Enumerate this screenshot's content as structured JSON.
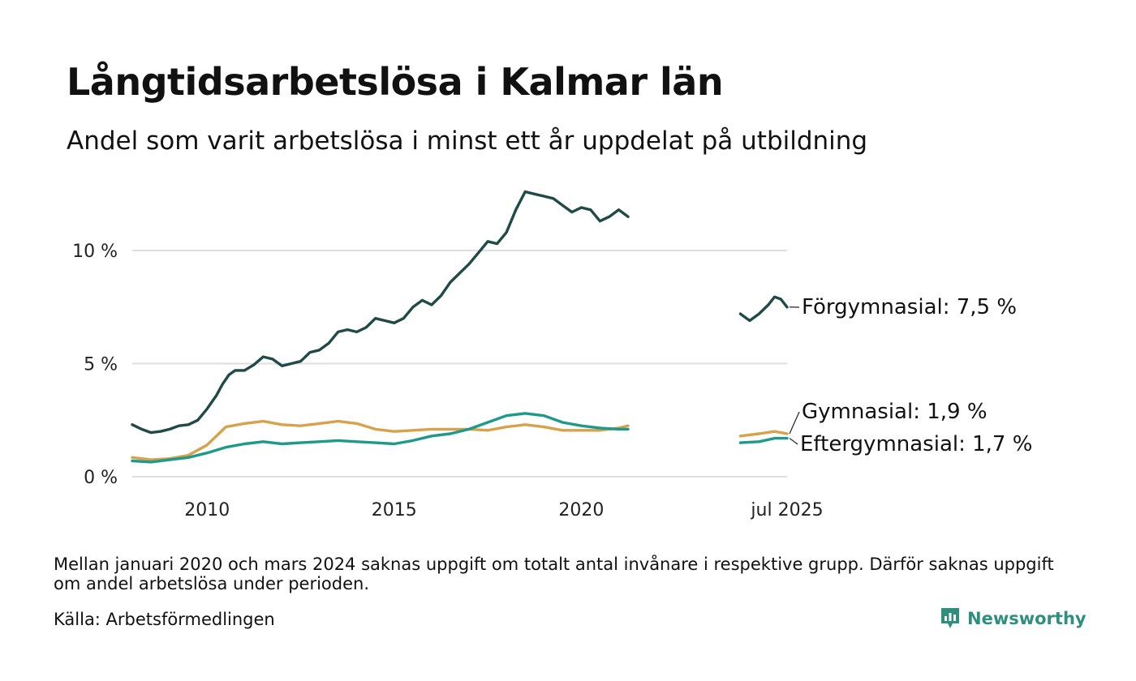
{
  "colors": {
    "forgymnasial": "#1f4a45",
    "gymnasial": "#d7a24b",
    "eftergymnasial": "#1d9a8a",
    "grid": "#dedede",
    "brand": "#2f8f7f"
  },
  "source_text": "Källa: Arbetsförmedlingen",
  "note_text": "Mellan januari 2020 och mars 2024 saknas uppgift om totalt antal invånare i respektive grupp. Därför saknas uppgift om andel arbetslösa under perioden.",
  "brand": {
    "name": "Newsworthy",
    "icon": "newsworthy-logo-icon"
  },
  "chart_data": {
    "type": "line",
    "title": "Långtidsarbetslösa i Kalmar län",
    "subtitle": "Andel som varit arbetslösa i minst ett år uppdelat på utbildning",
    "xlabel": "",
    "ylabel": "",
    "x_range": [
      "2008-01",
      "2025-07"
    ],
    "ylim": [
      0,
      13
    ],
    "y_ticks": [
      {
        "value": 0,
        "label": "0 %"
      },
      {
        "value": 5,
        "label": "5 %"
      },
      {
        "value": 10,
        "label": "10 %"
      }
    ],
    "x_ticks": [
      {
        "value": "2010-01",
        "label": "2010"
      },
      {
        "value": "2015-01",
        "label": "2015"
      },
      {
        "value": "2020-01",
        "label": "2020"
      },
      {
        "value": "2025-07",
        "label": "jul 2025"
      }
    ],
    "grid": true,
    "legend": "end-labels-right",
    "series": [
      {
        "name": "Förgymnasial",
        "end_label": "Förgymnasial: 7,5 %",
        "segments": [
          [
            [
              "2008-01",
              2.3
            ],
            [
              "2008-04",
              2.1
            ],
            [
              "2008-07",
              1.95
            ],
            [
              "2008-10",
              2.0
            ],
            [
              "2009-01",
              2.1
            ],
            [
              "2009-04",
              2.25
            ],
            [
              "2009-07",
              2.3
            ],
            [
              "2009-10",
              2.5
            ],
            [
              "2010-01",
              3.0
            ],
            [
              "2010-04",
              3.6
            ],
            [
              "2010-06",
              4.1
            ],
            [
              "2010-08",
              4.5
            ],
            [
              "2010-10",
              4.7
            ],
            [
              "2011-01",
              4.7
            ],
            [
              "2011-04",
              4.95
            ],
            [
              "2011-07",
              5.3
            ],
            [
              "2011-10",
              5.2
            ],
            [
              "2012-01",
              4.9
            ],
            [
              "2012-04",
              5.0
            ],
            [
              "2012-07",
              5.1
            ],
            [
              "2012-10",
              5.5
            ],
            [
              "2013-01",
              5.6
            ],
            [
              "2013-04",
              5.9
            ],
            [
              "2013-07",
              6.4
            ],
            [
              "2013-10",
              6.5
            ],
            [
              "2014-01",
              6.4
            ],
            [
              "2014-04",
              6.6
            ],
            [
              "2014-07",
              7.0
            ],
            [
              "2014-10",
              6.9
            ],
            [
              "2015-01",
              6.8
            ],
            [
              "2015-04",
              7.0
            ],
            [
              "2015-07",
              7.5
            ],
            [
              "2015-10",
              7.8
            ],
            [
              "2016-01",
              7.6
            ],
            [
              "2016-04",
              8.0
            ],
            [
              "2016-07",
              8.6
            ],
            [
              "2016-10",
              9.0
            ],
            [
              "2017-01",
              9.4
            ],
            [
              "2017-04",
              9.9
            ],
            [
              "2017-07",
              10.4
            ],
            [
              "2017-10",
              10.3
            ],
            [
              "2018-01",
              10.8
            ],
            [
              "2018-04",
              11.8
            ],
            [
              "2018-07",
              12.6
            ],
            [
              "2018-10",
              12.5
            ],
            [
              "2019-01",
              12.4
            ],
            [
              "2019-04",
              12.3
            ],
            [
              "2019-07",
              12.0
            ],
            [
              "2019-10",
              11.7
            ],
            [
              "2020-01",
              11.9
            ],
            [
              "2020-04",
              11.8
            ],
            [
              "2020-07",
              11.3
            ],
            [
              "2020-10",
              11.5
            ],
            [
              "2021-01",
              11.8
            ],
            [
              "2021-04",
              11.5
            ]
          ],
          [
            [
              "2024-04",
              7.2
            ],
            [
              "2024-07",
              6.9
            ],
            [
              "2024-10",
              7.2
            ],
            [
              "2025-01",
              7.6
            ],
            [
              "2025-03",
              7.95
            ],
            [
              "2025-05",
              7.85
            ],
            [
              "2025-07",
              7.5
            ]
          ]
        ]
      },
      {
        "name": "Gymnasial",
        "end_label": "Gymnasial: 1,9 %",
        "segments": [
          [
            [
              "2008-01",
              0.85
            ],
            [
              "2008-07",
              0.75
            ],
            [
              "2009-01",
              0.8
            ],
            [
              "2009-07",
              0.95
            ],
            [
              "2010-01",
              1.4
            ],
            [
              "2010-07",
              2.2
            ],
            [
              "2011-01",
              2.35
            ],
            [
              "2011-07",
              2.45
            ],
            [
              "2012-01",
              2.3
            ],
            [
              "2012-07",
              2.25
            ],
            [
              "2013-01",
              2.35
            ],
            [
              "2013-07",
              2.45
            ],
            [
              "2014-01",
              2.35
            ],
            [
              "2014-07",
              2.1
            ],
            [
              "2015-01",
              2.0
            ],
            [
              "2015-07",
              2.05
            ],
            [
              "2016-01",
              2.1
            ],
            [
              "2016-07",
              2.1
            ],
            [
              "2017-01",
              2.1
            ],
            [
              "2017-07",
              2.05
            ],
            [
              "2018-01",
              2.2
            ],
            [
              "2018-07",
              2.3
            ],
            [
              "2019-01",
              2.2
            ],
            [
              "2019-07",
              2.05
            ],
            [
              "2020-01",
              2.05
            ],
            [
              "2020-07",
              2.05
            ],
            [
              "2021-01",
              2.15
            ],
            [
              "2021-04",
              2.25
            ]
          ],
          [
            [
              "2024-04",
              1.8
            ],
            [
              "2024-10",
              1.9
            ],
            [
              "2025-03",
              2.0
            ],
            [
              "2025-07",
              1.9
            ]
          ]
        ]
      },
      {
        "name": "Eftergymnasial",
        "end_label": "Eftergymnasial: 1,7 %",
        "segments": [
          [
            [
              "2008-01",
              0.7
            ],
            [
              "2008-07",
              0.65
            ],
            [
              "2009-01",
              0.75
            ],
            [
              "2009-07",
              0.85
            ],
            [
              "2010-01",
              1.05
            ],
            [
              "2010-07",
              1.3
            ],
            [
              "2011-01",
              1.45
            ],
            [
              "2011-07",
              1.55
            ],
            [
              "2012-01",
              1.45
            ],
            [
              "2012-07",
              1.5
            ],
            [
              "2013-01",
              1.55
            ],
            [
              "2013-07",
              1.6
            ],
            [
              "2014-01",
              1.55
            ],
            [
              "2014-07",
              1.5
            ],
            [
              "2015-01",
              1.45
            ],
            [
              "2015-07",
              1.6
            ],
            [
              "2016-01",
              1.8
            ],
            [
              "2016-07",
              1.9
            ],
            [
              "2017-01",
              2.1
            ],
            [
              "2017-07",
              2.4
            ],
            [
              "2018-01",
              2.7
            ],
            [
              "2018-07",
              2.8
            ],
            [
              "2019-01",
              2.7
            ],
            [
              "2019-07",
              2.4
            ],
            [
              "2020-01",
              2.25
            ],
            [
              "2020-07",
              2.15
            ],
            [
              "2021-01",
              2.1
            ],
            [
              "2021-04",
              2.1
            ]
          ],
          [
            [
              "2024-04",
              1.5
            ],
            [
              "2024-10",
              1.55
            ],
            [
              "2025-03",
              1.7
            ],
            [
              "2025-07",
              1.7
            ]
          ]
        ]
      }
    ]
  }
}
